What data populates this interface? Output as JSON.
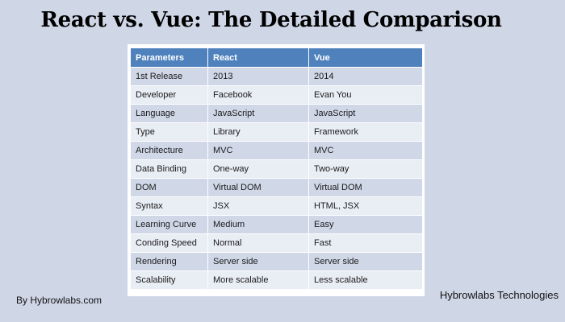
{
  "title": "React vs. Vue: The Detailed Comparison",
  "table": {
    "headers": [
      "Parameters",
      "React",
      "Vue"
    ],
    "rows": [
      [
        "1st Release",
        "2013",
        "2014"
      ],
      [
        "Developer",
        "Facebook",
        "Evan You"
      ],
      [
        "Language",
        "JavaScript",
        "JavaScript"
      ],
      [
        "Type",
        "Library",
        "Framework"
      ],
      [
        "Architecture",
        "MVC",
        "MVC"
      ],
      [
        "Data Binding",
        "One-way",
        "Two-way"
      ],
      [
        "DOM",
        "Virtual DOM",
        "Virtual DOM"
      ],
      [
        "Syntax",
        "JSX",
        "HTML, JSX"
      ],
      [
        "Learning Curve",
        "Medium",
        "Easy"
      ],
      [
        "Conding Speed",
        "Normal",
        "Fast"
      ],
      [
        "Rendering",
        "Server side",
        "Server side"
      ],
      [
        "Scalability",
        "More scalable",
        "Less scalable"
      ]
    ]
  },
  "footer": {
    "left": "By Hybrowlabs.com",
    "right": "Hybrowlabs Technologies"
  },
  "colors": {
    "background": "#cfd6e6",
    "header": "#4f81bd",
    "row_odd": "#d0d8e8",
    "row_even": "#e9edf4"
  }
}
